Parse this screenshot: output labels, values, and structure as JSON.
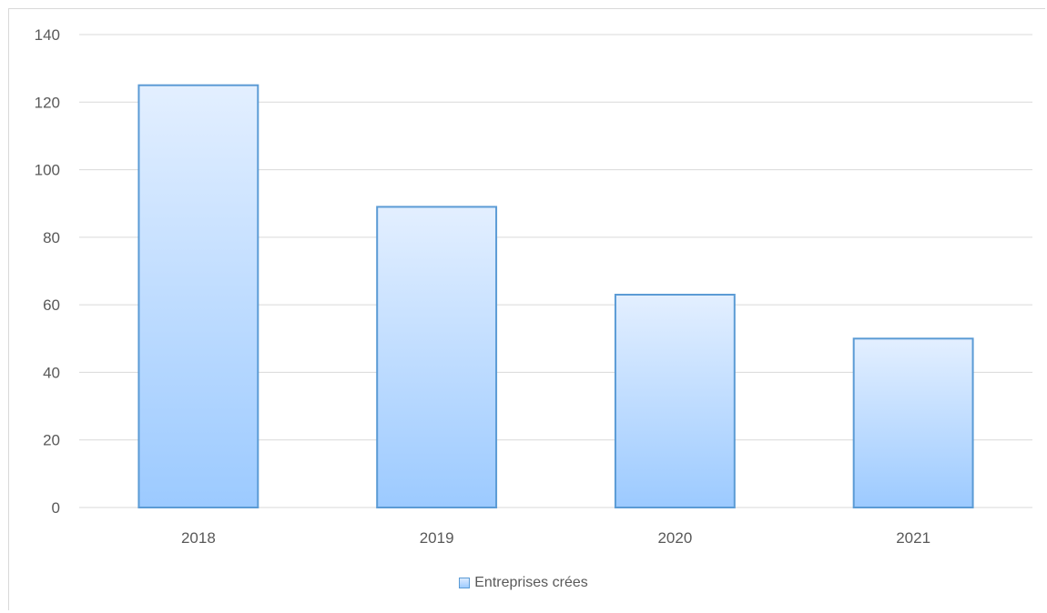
{
  "chart_data": {
    "type": "bar",
    "categories": [
      "2018",
      "2019",
      "2020",
      "2021"
    ],
    "series": [
      {
        "name": "Entreprises crées",
        "values": [
          125,
          89,
          63,
          50
        ]
      }
    ],
    "ylim": [
      0,
      140
    ],
    "yticks": [
      0,
      20,
      40,
      60,
      80,
      100,
      120,
      140
    ],
    "grid": true,
    "legend_position": "bottom",
    "colors": {
      "bar_top": "#e3efff",
      "bar_bottom": "#9ccaff",
      "bar_border": "#5b9bd5",
      "grid": "#d9d9d9",
      "text": "#595959"
    }
  },
  "legend": {
    "label": "Entreprises crées"
  }
}
